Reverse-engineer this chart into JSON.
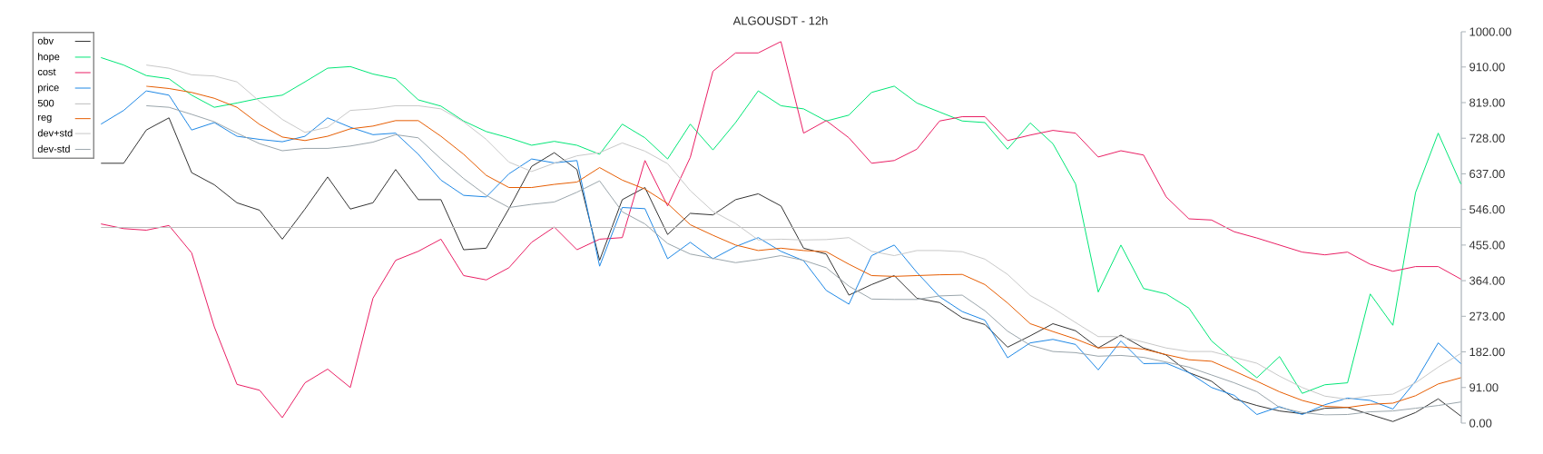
{
  "chart_data": {
    "type": "line",
    "title": "ALGOUSDT - 12h",
    "categories": [
      null,
      null,
      null,
      null,
      null,
      null,
      null,
      null,
      null,
      null,
      null,
      null,
      null,
      null,
      null,
      null,
      null,
      null,
      null,
      null,
      null,
      null,
      null,
      null,
      null,
      null,
      null,
      null,
      null,
      null,
      null,
      null,
      null,
      null,
      null,
      null,
      null,
      null,
      null,
      null,
      null,
      null,
      null,
      null,
      null,
      null,
      null,
      null,
      null,
      null,
      null,
      null,
      null,
      null,
      null,
      null,
      null,
      null,
      null,
      null,
      null
    ],
    "series": [
      {
        "name": "obv",
        "color": "#333333",
        "values": [
          664,
          664,
          749,
          780,
          640,
          609,
          563,
          544,
          470,
          547,
          629,
          547,
          563,
          648,
          571,
          571,
          443,
          447,
          548,
          656,
          691,
          648,
          416,
          571,
          602,
          482,
          536,
          532,
          571,
          586,
          555,
          447,
          432,
          327,
          354,
          377,
          319,
          308,
          269,
          252,
          194,
          223,
          254,
          236,
          192,
          225,
          192,
          174,
          129,
          107,
          62,
          45,
          31,
          24,
          38,
          40,
          22,
          4,
          27,
          62,
          18
        ]
      },
      {
        "name": "hope",
        "color": "#00e676",
        "values": [
          934,
          915,
          888,
          880,
          838,
          807,
          818,
          830,
          838,
          872,
          907,
          911,
          892,
          880,
          826,
          810,
          772,
          745,
          729,
          710,
          720,
          710,
          687,
          764,
          729,
          675,
          764,
          698,
          768,
          849,
          811,
          803,
          772,
          787,
          845,
          861,
          818,
          795,
          772,
          768,
          700,
          767,
          714,
          611,
          335,
          455,
          344,
          330,
          294,
          210,
          161,
          116,
          170,
          76,
          98,
          103,
          330,
          250,
          589,
          741,
          611
        ]
      },
      {
        "name": "cost",
        "color": "#e91e63",
        "values": [
          509,
          497,
          493,
          505,
          435,
          246,
          99,
          84,
          14,
          103,
          138,
          91,
          319,
          416,
          439,
          470,
          377,
          366,
          397,
          462,
          501,
          443,
          470,
          474,
          671,
          555,
          679,
          899,
          946,
          946,
          975,
          741,
          773,
          729,
          664,
          671,
          700,
          772,
          783,
          783,
          722,
          736,
          748,
          741,
          680,
          696,
          685,
          578,
          522,
          519,
          489,
          473,
          455,
          437,
          430,
          437,
          406,
          388,
          400,
          400,
          368
        ]
      },
      {
        "name": "price",
        "color": "#1e88e5",
        "values": [
          764,
          799,
          849,
          838,
          749,
          768,
          733,
          725,
          719,
          733,
          780,
          756,
          737,
          741,
          687,
          621,
          582,
          578,
          637,
          675,
          665,
          671,
          401,
          551,
          548,
          420,
          462,
          420,
          451,
          474,
          439,
          415,
          339,
          304,
          428,
          455,
          385,
          323,
          285,
          263,
          167,
          205,
          214,
          201,
          136,
          210,
          152,
          153,
          129,
          91,
          71,
          22,
          42,
          22,
          47,
          64,
          58,
          36,
          107,
          205,
          152
        ]
      },
      {
        "name": "500",
        "color": "#bdbdbd",
        "values": [
          500,
          500,
          500,
          500,
          500,
          500,
          500,
          500,
          500,
          500,
          500,
          500,
          500,
          500,
          500,
          500,
          500,
          500,
          500,
          500,
          500,
          500,
          500,
          500,
          500,
          500,
          500,
          500,
          500,
          500,
          500,
          500,
          500,
          500,
          500,
          500,
          500,
          500,
          500,
          500,
          500,
          500,
          500,
          500,
          500,
          500,
          500,
          500,
          500,
          500,
          500,
          500,
          500,
          500,
          500,
          500,
          500,
          500,
          500,
          500,
          500
        ]
      },
      {
        "name": "reg",
        "color": "#e65c00",
        "values": [
          null,
          null,
          861,
          855,
          845,
          830,
          807,
          763,
          731,
          722,
          733,
          752,
          759,
          773,
          773,
          733,
          687,
          633,
          602,
          602,
          610,
          616,
          653,
          621,
          598,
          561,
          507,
          480,
          455,
          441,
          447,
          441,
          438,
          406,
          377,
          375,
          377,
          379,
          380,
          354,
          307,
          254,
          234,
          215,
          192,
          195,
          189,
          175,
          162,
          158,
          133,
          107,
          80,
          58,
          43,
          40,
          48,
          51,
          70,
          100,
          116
        ]
      },
      {
        "name": "dev+std",
        "color": "#c8c8c8",
        "values": [
          null,
          null,
          915,
          907,
          890,
          887,
          872,
          822,
          776,
          743,
          756,
          799,
          803,
          811,
          811,
          803,
          770,
          725,
          667,
          643,
          664,
          683,
          691,
          716,
          695,
          663,
          594,
          541,
          510,
          468,
          470,
          468,
          469,
          474,
          439,
          428,
          441,
          441,
          438,
          419,
          380,
          326,
          294,
          257,
          221,
          221,
          207,
          192,
          183,
          183,
          168,
          153,
          120,
          91,
          69,
          61,
          70,
          74,
          103,
          143,
          178
        ]
      },
      {
        "name": "dev-std",
        "color": "#9aa5ab",
        "values": [
          null,
          null,
          811,
          807,
          789,
          770,
          741,
          714,
          696,
          702,
          702,
          708,
          718,
          737,
          729,
          675,
          625,
          582,
          551,
          559,
          565,
          590,
          619,
          540,
          509,
          459,
          432,
          421,
          410,
          418,
          428,
          416,
          397,
          350,
          317,
          316,
          316,
          325,
          327,
          287,
          235,
          199,
          183,
          180,
          171,
          173,
          168,
          156,
          143,
          123,
          103,
          80,
          40,
          27,
          21,
          22,
          29,
          31,
          38,
          45,
          54
        ]
      }
    ],
    "ylim": [
      0,
      1000
    ],
    "yticks": [
      {
        "value": 0,
        "label": "0.00"
      },
      {
        "value": 91,
        "label": "91.00"
      },
      {
        "value": 182,
        "label": "182.00"
      },
      {
        "value": 273,
        "label": "273.00"
      },
      {
        "value": 364,
        "label": "364.00"
      },
      {
        "value": 455,
        "label": "455.00"
      },
      {
        "value": 546,
        "label": "546.00"
      },
      {
        "value": 637,
        "label": "637.00"
      },
      {
        "value": 728,
        "label": "728.00"
      },
      {
        "value": 819,
        "label": "819.00"
      },
      {
        "value": 910,
        "label": "910.00"
      },
      {
        "value": 1000,
        "label": "1000.00"
      }
    ],
    "legend": "top left",
    "tick_labels": "y"
  }
}
